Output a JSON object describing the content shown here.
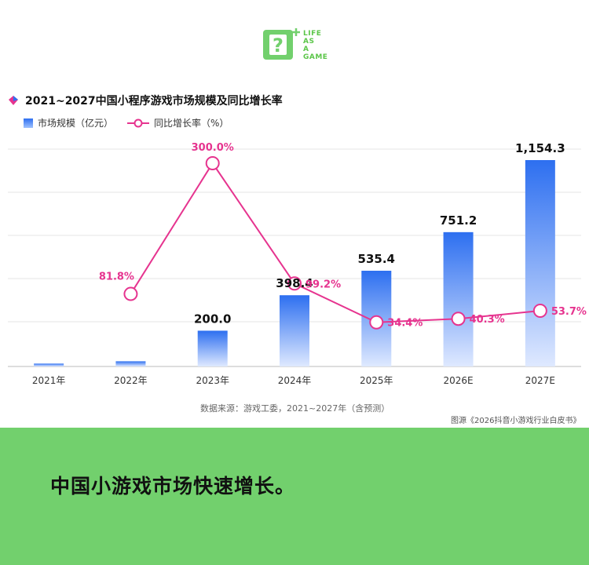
{
  "brand": {
    "lines": [
      "LIFE",
      "AS",
      "A",
      "GAME"
    ]
  },
  "title": "2021~2027中国小程序游戏市场规模及同比增长率",
  "legend": {
    "bar": "市场规模（亿元）",
    "line": "同比增长率（%）"
  },
  "source": "数据来源：游戏工委，2021~2027年（含预测）",
  "credit": "图源《2026抖音小游戏行业白皮书》",
  "caption": "中国小游戏市场快速增长。",
  "colors": {
    "bar_top": "#2d6ff0",
    "bar_bottom": "#dfe9ff",
    "line": "#e6348f",
    "background_band": "#72d06d",
    "brand": "#5cc64a"
  },
  "chart_data": {
    "type": "bar",
    "categories": [
      "2021年",
      "2022年",
      "2023年",
      "2024年",
      "2025年",
      "2026E",
      "2027E"
    ],
    "series": [
      {
        "name": "市场规模（亿元）",
        "type": "bar",
        "values": [
          16.0,
          29.0,
          200.0,
          398.4,
          535.4,
          751.2,
          1154.3
        ],
        "labels": [
          "",
          "",
          "200.0",
          "398.4",
          "535.4",
          "751.2",
          "1,154.3"
        ]
      },
      {
        "name": "同比增长率（%）",
        "type": "line",
        "values": [
          null,
          81.8,
          300.0,
          99.2,
          34.4,
          40.3,
          53.7
        ],
        "labels": [
          "",
          "81.8%",
          "300.0%",
          "99.2%",
          "34.4%",
          "40.3%",
          "53.7%"
        ]
      }
    ],
    "ylim": [
      0,
      1200
    ],
    "y2lim": [
      0,
      330
    ],
    "grid": true
  }
}
